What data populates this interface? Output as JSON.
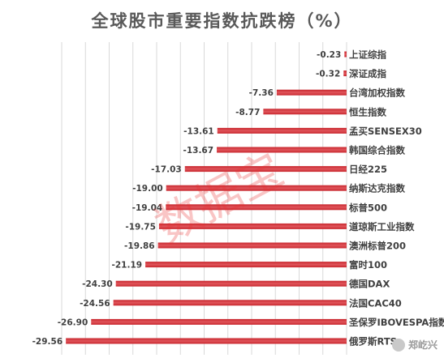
{
  "chart_data": {
    "type": "bar",
    "orientation": "horizontal",
    "title": "全球股市重要指数抗跌榜（%）",
    "categories": [
      "上证综指",
      "深证成指",
      "台湾加权指数",
      "恒生指数",
      "孟买SENSEX30",
      "韩国综合指数",
      "日经225",
      "纳斯达克指数",
      "标普500",
      "道琼斯工业指数",
      "澳洲标普200",
      "富时100",
      "德国DAX",
      "法国CAC40",
      "圣保罗IBOVESPA指数",
      "俄罗斯RTS"
    ],
    "values": [
      -0.23,
      -0.32,
      -7.36,
      -8.77,
      -13.61,
      -13.67,
      -17.03,
      -19.0,
      -19.04,
      -19.75,
      -19.86,
      -21.19,
      -24.3,
      -24.56,
      -26.9,
      -29.56
    ],
    "value_labels": [
      "-0.23",
      "-0.32",
      "-7.36",
      "-8.77",
      "-13.61",
      "-13.67",
      "-17.03",
      "-19.00",
      "-19.04",
      "-19.75",
      "-19.86",
      "-21.19",
      "-24.30",
      "-24.56",
      "-26.90",
      "-29.56"
    ],
    "xlim": [
      -30,
      0
    ],
    "grid": true,
    "colors": {
      "bar": "#c8262d",
      "bar_light": "#e0555b",
      "grid": "#d9d9d9",
      "text": "#404040"
    }
  },
  "watermark": {
    "text": "数据宝"
  },
  "logo": {
    "text": "郑屹兴"
  }
}
